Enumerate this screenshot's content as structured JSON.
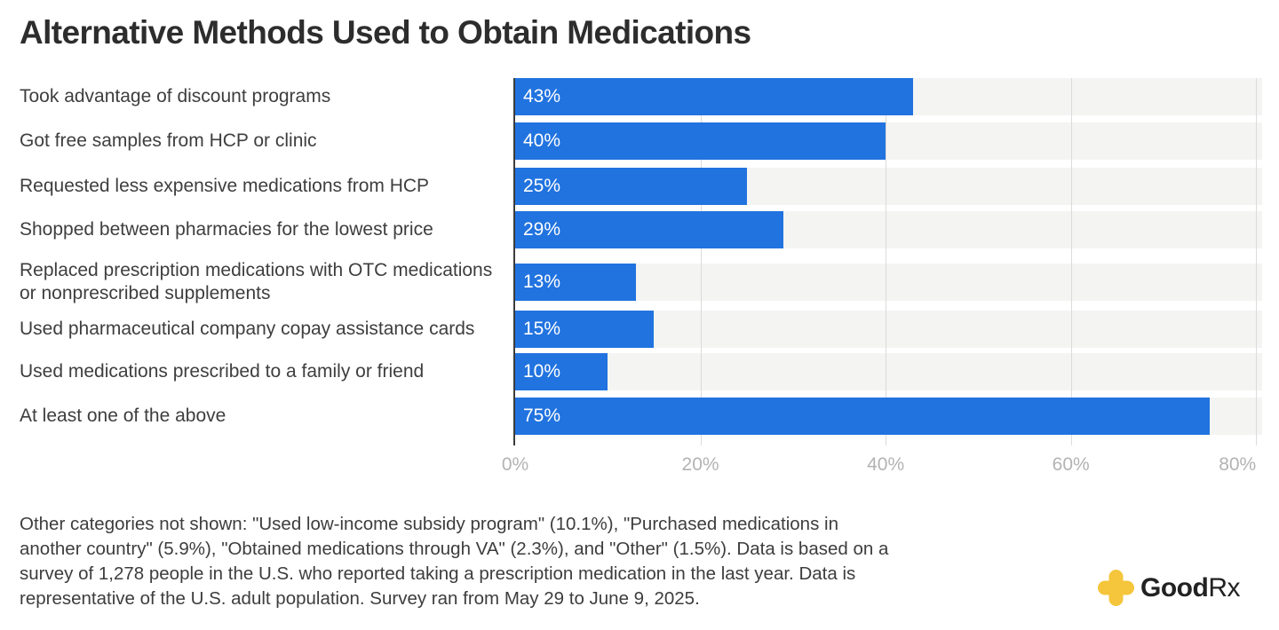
{
  "title": "Alternative Methods Used to Obtain Medications",
  "chart_data": {
    "type": "bar",
    "orientation": "horizontal",
    "title": "Alternative Methods Used to Obtain Medications",
    "categories": [
      "Took advantage of discount programs",
      "Got free samples from HCP or clinic",
      "Requested less expensive medications from HCP",
      "Shopped between pharmacies for the lowest price",
      "Replaced prescription medications with OTC medications or nonprescribed supplements",
      "Used pharmaceutical company copay assistance cards",
      "Used medications prescribed to a family or friend",
      "At least one of the above"
    ],
    "values": [
      43,
      40,
      25,
      29,
      13,
      15,
      10,
      75
    ],
    "value_labels": [
      "43%",
      "40%",
      "25%",
      "29%",
      "13%",
      "15%",
      "10%",
      "75%"
    ],
    "xlabel": "",
    "ylabel": "",
    "xlim": [
      0,
      80.65
    ],
    "x_ticks": [
      "0%",
      "20%",
      "40%",
      "60%",
      "80%"
    ],
    "x_tick_values": [
      0,
      20,
      40,
      60,
      80
    ],
    "grid": "vertical",
    "legend": "none",
    "bar_color": "#2173df",
    "track_color": "#f4f4f3",
    "gridline_color": "#dbdbdb",
    "axis_line_color": "#3c3c3c"
  },
  "footnote": {
    "lines": [
      "Other categories not shown: \"Used low-income subsidy program\" (10.1%), \"Purchased medications in",
      "another country\" (5.9%), \"Obtained medications through VA\" (2.3%), and \"Other\" (1.5%). Data is based on a",
      "survey of 1,278 people in the U.S. who reported taking a prescription medication in the last year. Data is",
      "representative of the U.S. adult population. Survey ran from May 29 to June 9, 2025."
    ],
    "text": "Other categories not shown: \"Used low-income subsidy program\" (10.1%), \"Purchased medications in another country\" (5.9%), \"Obtained medications through VA\" (2.3%), and \"Other\" (1.5%). Data is based on a survey of 1,278 people in the U.S. who reported taking a prescription medication in the last year. Data is representative of the U.S. adult population. Survey ran from May 29 to June 9, 2025."
  },
  "logo": {
    "brand_bold": "Good",
    "brand_regular": "Rx",
    "cross_color": "#f5c53b"
  }
}
